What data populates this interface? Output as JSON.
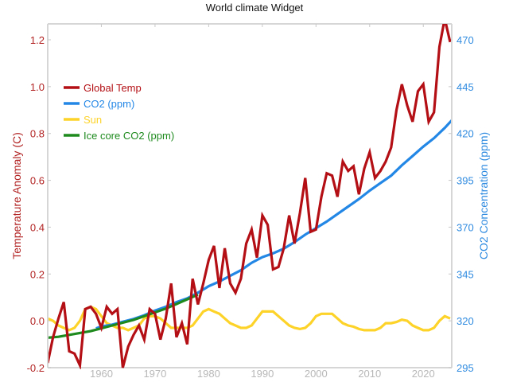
{
  "chart_data": {
    "type": "line",
    "title": "World climate Widget",
    "xlabel": "",
    "ylabel_left": "Temperature Anomaly (C)",
    "ylabel_right": "CO2 Concentration (ppm)",
    "xlim": [
      1950,
      2025.3
    ],
    "ylim_left": [
      -0.2,
      1.28
    ],
    "ylim_right": [
      295,
      480
    ],
    "x_ticks": [
      1960,
      1970,
      1980,
      1990,
      2000,
      2010,
      2020
    ],
    "x_tick_labels": [
      "1960",
      "1970",
      "1980",
      "1990",
      "2000",
      "2010",
      "2020"
    ],
    "y_left_ticks": [
      -0.2,
      0.0,
      0.2,
      0.4,
      0.6,
      0.8,
      1.0,
      1.2
    ],
    "y_left_tick_labels": [
      "-0.2",
      "0.0",
      "0.2",
      "0.4",
      "0.6",
      "0.8",
      "1.0",
      "1.2"
    ],
    "y_right_ticks": [
      295,
      320,
      345,
      370,
      395,
      420,
      445,
      470
    ],
    "y_right_tick_labels": [
      "295",
      "320",
      "345",
      "370",
      "395",
      "420",
      "445",
      "470"
    ],
    "grid": false,
    "legend_position": "top-left",
    "colors": {
      "global_temp": "#b30f14",
      "co2": "#2387e6",
      "sun": "#fdd32a",
      "ice_core": "#1e8a1e",
      "axis": "#d6d6d6"
    },
    "series": [
      {
        "name": "Global Temp",
        "axis": "left",
        "color_key": "global_temp",
        "x": [
          1950,
          1951,
          1952,
          1953,
          1954,
          1955,
          1956,
          1957,
          1958,
          1959,
          1960,
          1961,
          1962,
          1963,
          1964,
          1965,
          1966,
          1967,
          1968,
          1969,
          1970,
          1971,
          1972,
          1973,
          1974,
          1975,
          1976,
          1977,
          1978,
          1979,
          1980,
          1981,
          1982,
          1983,
          1984,
          1985,
          1986,
          1987,
          1988,
          1989,
          1990,
          1991,
          1992,
          1993,
          1994,
          1995,
          1996,
          1997,
          1998,
          1999,
          2000,
          2001,
          2002,
          2003,
          2004,
          2005,
          2006,
          2007,
          2008,
          2009,
          2010,
          2011,
          2012,
          2013,
          2014,
          2015,
          2016,
          2017,
          2018,
          2019,
          2020,
          2021,
          2022,
          2023,
          2024,
          2025
        ],
        "values": [
          -0.18,
          -0.07,
          0.01,
          0.08,
          -0.13,
          -0.14,
          -0.19,
          0.05,
          0.06,
          0.03,
          -0.03,
          0.06,
          0.03,
          0.05,
          -0.2,
          -0.11,
          -0.06,
          -0.02,
          -0.08,
          0.05,
          0.03,
          -0.08,
          0.01,
          0.16,
          -0.07,
          -0.01,
          -0.1,
          0.18,
          0.07,
          0.16,
          0.26,
          0.32,
          0.14,
          0.31,
          0.16,
          0.12,
          0.18,
          0.33,
          0.39,
          0.27,
          0.45,
          0.41,
          0.22,
          0.23,
          0.31,
          0.45,
          0.33,
          0.46,
          0.61,
          0.38,
          0.39,
          0.53,
          0.63,
          0.62,
          0.53,
          0.68,
          0.64,
          0.66,
          0.54,
          0.65,
          0.72,
          0.61,
          0.64,
          0.68,
          0.74,
          0.9,
          1.01,
          0.92,
          0.85,
          0.98,
          1.01,
          0.85,
          0.89,
          1.17,
          1.29,
          1.19
        ]
      },
      {
        "name": "CO2 (ppm)",
        "axis": "right",
        "color_key": "co2",
        "x": [
          1959,
          1960,
          1962,
          1964,
          1966,
          1968,
          1970,
          1972,
          1974,
          1976,
          1978,
          1980,
          1982,
          1984,
          1986,
          1988,
          1990,
          1992,
          1994,
          1996,
          1998,
          2000,
          2002,
          2004,
          2006,
          2008,
          2010,
          2012,
          2014,
          2016,
          2018,
          2020,
          2022,
          2024,
          2025.3
        ],
        "values": [
          316,
          317,
          318,
          319.5,
          321,
          323,
          325.5,
          327.5,
          330,
          332,
          335,
          338.5,
          341,
          344,
          347,
          351,
          354,
          356,
          358.5,
          362,
          366,
          369.5,
          373,
          377,
          381,
          385,
          389.5,
          393.5,
          397.5,
          403,
          408,
          413,
          417.5,
          423,
          427
        ]
      },
      {
        "name": "Sun",
        "axis": "left",
        "color_key": "sun",
        "x": [
          1950,
          1951,
          1952,
          1953,
          1954,
          1955,
          1956,
          1957,
          1958,
          1959,
          1960,
          1961,
          1962,
          1963,
          1964,
          1965,
          1966,
          1967,
          1968,
          1969,
          1970,
          1971,
          1972,
          1973,
          1974,
          1975,
          1976,
          1977,
          1978,
          1979,
          1980,
          1981,
          1982,
          1983,
          1984,
          1985,
          1986,
          1987,
          1988,
          1989,
          1990,
          1991,
          1992,
          1993,
          1994,
          1995,
          1996,
          1997,
          1998,
          1999,
          2000,
          2001,
          2002,
          2003,
          2004,
          2005,
          2006,
          2007,
          2008,
          2009,
          2010,
          2011,
          2012,
          2013,
          2014,
          2015,
          2016,
          2017,
          2018,
          2019,
          2020,
          2021,
          2022,
          2023,
          2024,
          2025
        ],
        "values": [
          0.01,
          0.0,
          -0.02,
          -0.03,
          -0.04,
          -0.03,
          0.0,
          0.05,
          0.06,
          0.05,
          0.02,
          -0.01,
          -0.02,
          -0.03,
          -0.03,
          -0.04,
          -0.03,
          -0.02,
          0.01,
          0.02,
          0.02,
          0.01,
          -0.01,
          -0.03,
          -0.03,
          -0.03,
          -0.03,
          -0.02,
          0.01,
          0.04,
          0.05,
          0.04,
          0.03,
          0.01,
          -0.01,
          -0.02,
          -0.03,
          -0.03,
          -0.02,
          0.01,
          0.04,
          0.04,
          0.04,
          0.02,
          0.0,
          -0.02,
          -0.03,
          -0.035,
          -0.03,
          -0.01,
          0.02,
          0.03,
          0.03,
          0.03,
          0.01,
          -0.01,
          -0.02,
          -0.025,
          -0.035,
          -0.04,
          -0.04,
          -0.04,
          -0.03,
          -0.01,
          -0.01,
          -0.005,
          0.005,
          0.0,
          -0.02,
          -0.03,
          -0.04,
          -0.04,
          -0.03,
          0.0,
          0.02,
          0.01
        ]
      },
      {
        "name": "Ice core CO2 (ppm)",
        "axis": "right",
        "color_key": "ice_core",
        "x": [
          1950,
          1952,
          1954,
          1956,
          1958,
          1960,
          1962,
          1964,
          1966,
          1968,
          1970,
          1972,
          1974,
          1976,
          1978
        ],
        "values": [
          311,
          311.5,
          312.5,
          313.5,
          314.5,
          316,
          317.5,
          319,
          320.5,
          322.5,
          324.5,
          326.5,
          329,
          331.5,
          334
        ]
      }
    ]
  }
}
